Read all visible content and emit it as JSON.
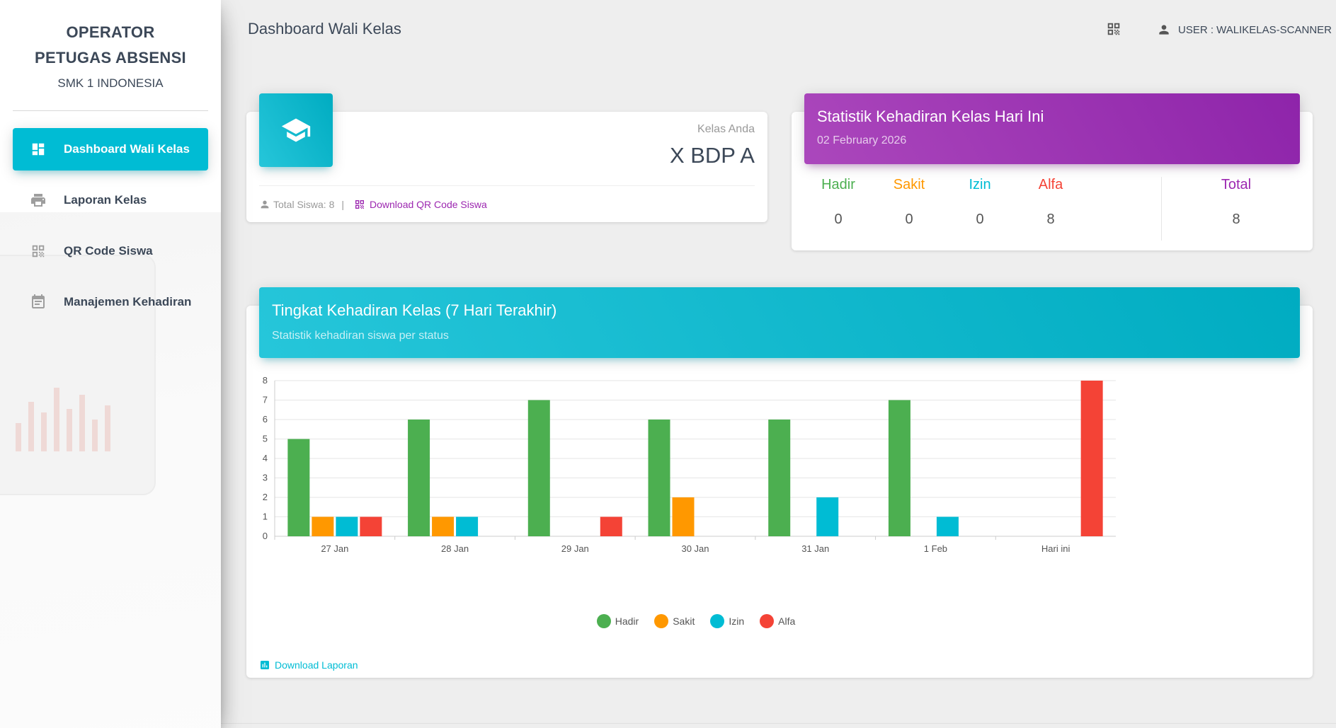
{
  "sidebar": {
    "brand_line1": "OPERATOR",
    "brand_line2": "PETUGAS ABSENSI",
    "brand_line3": "SMK 1 INDONESIA",
    "items": [
      {
        "label": "Dashboard Wali Kelas",
        "icon": "dashboard-icon",
        "active": true
      },
      {
        "label": "Laporan Kelas",
        "icon": "printer-icon"
      },
      {
        "label": "QR Code Siswa",
        "icon": "qr-code-icon"
      },
      {
        "label": "Manajemen Kehadiran",
        "icon": "calendar-icon"
      }
    ]
  },
  "topbar": {
    "title": "Dashboard Wali Kelas",
    "qr_icon": "qr-code-icon",
    "user_label": "USER : WALIKELAS-SCANNER"
  },
  "class_card": {
    "icon": "graduation-cap-icon",
    "category": "Kelas Anda",
    "value": "X BDP A",
    "total_label": "Total Siswa: 8",
    "separator": "|",
    "download_qr": "Download QR Code Siswa"
  },
  "stats_card": {
    "title": "Statistik Kehadiran Kelas Hari Ini",
    "date": "02 February 2026",
    "items": [
      {
        "label": "Hadir",
        "value": "0",
        "color": "#4caf50"
      },
      {
        "label": "Sakit",
        "value": "0",
        "color": "#ff9800"
      },
      {
        "label": "Izin",
        "value": "0",
        "color": "#00bcd4"
      },
      {
        "label": "Alfa",
        "value": "8",
        "color": "#f44336"
      },
      {
        "label": "Total",
        "value": "8",
        "color": "#9c27b0"
      }
    ]
  },
  "chart_card": {
    "title": "Tingkat Kehadiran Kelas (7 Hari Terakhir)",
    "subtitle": "Statistik kehadiran siswa per status",
    "download": "Download Laporan"
  },
  "chart_data": {
    "type": "bar",
    "categories": [
      "27 Jan",
      "28 Jan",
      "29 Jan",
      "30 Jan",
      "31 Jan",
      "1 Feb",
      "Hari ini"
    ],
    "ylim": [
      0,
      8
    ],
    "yticks": [
      "0",
      "1",
      "2",
      "3",
      "4",
      "5",
      "6",
      "7",
      "8"
    ],
    "grid": true,
    "legend": "bottom-center",
    "series": [
      {
        "name": "Hadir",
        "color": "#4caf50",
        "values": [
          5,
          6,
          7,
          6,
          6,
          7,
          0
        ]
      },
      {
        "name": "Sakit",
        "color": "#ff9800",
        "values": [
          1,
          1,
          0,
          2,
          0,
          0,
          0
        ]
      },
      {
        "name": "Izin",
        "color": "#00bcd4",
        "values": [
          1,
          1,
          0,
          0,
          2,
          1,
          0
        ]
      },
      {
        "name": "Alfa",
        "color": "#f44336",
        "values": [
          1,
          0,
          1,
          0,
          0,
          0,
          8
        ]
      }
    ]
  }
}
